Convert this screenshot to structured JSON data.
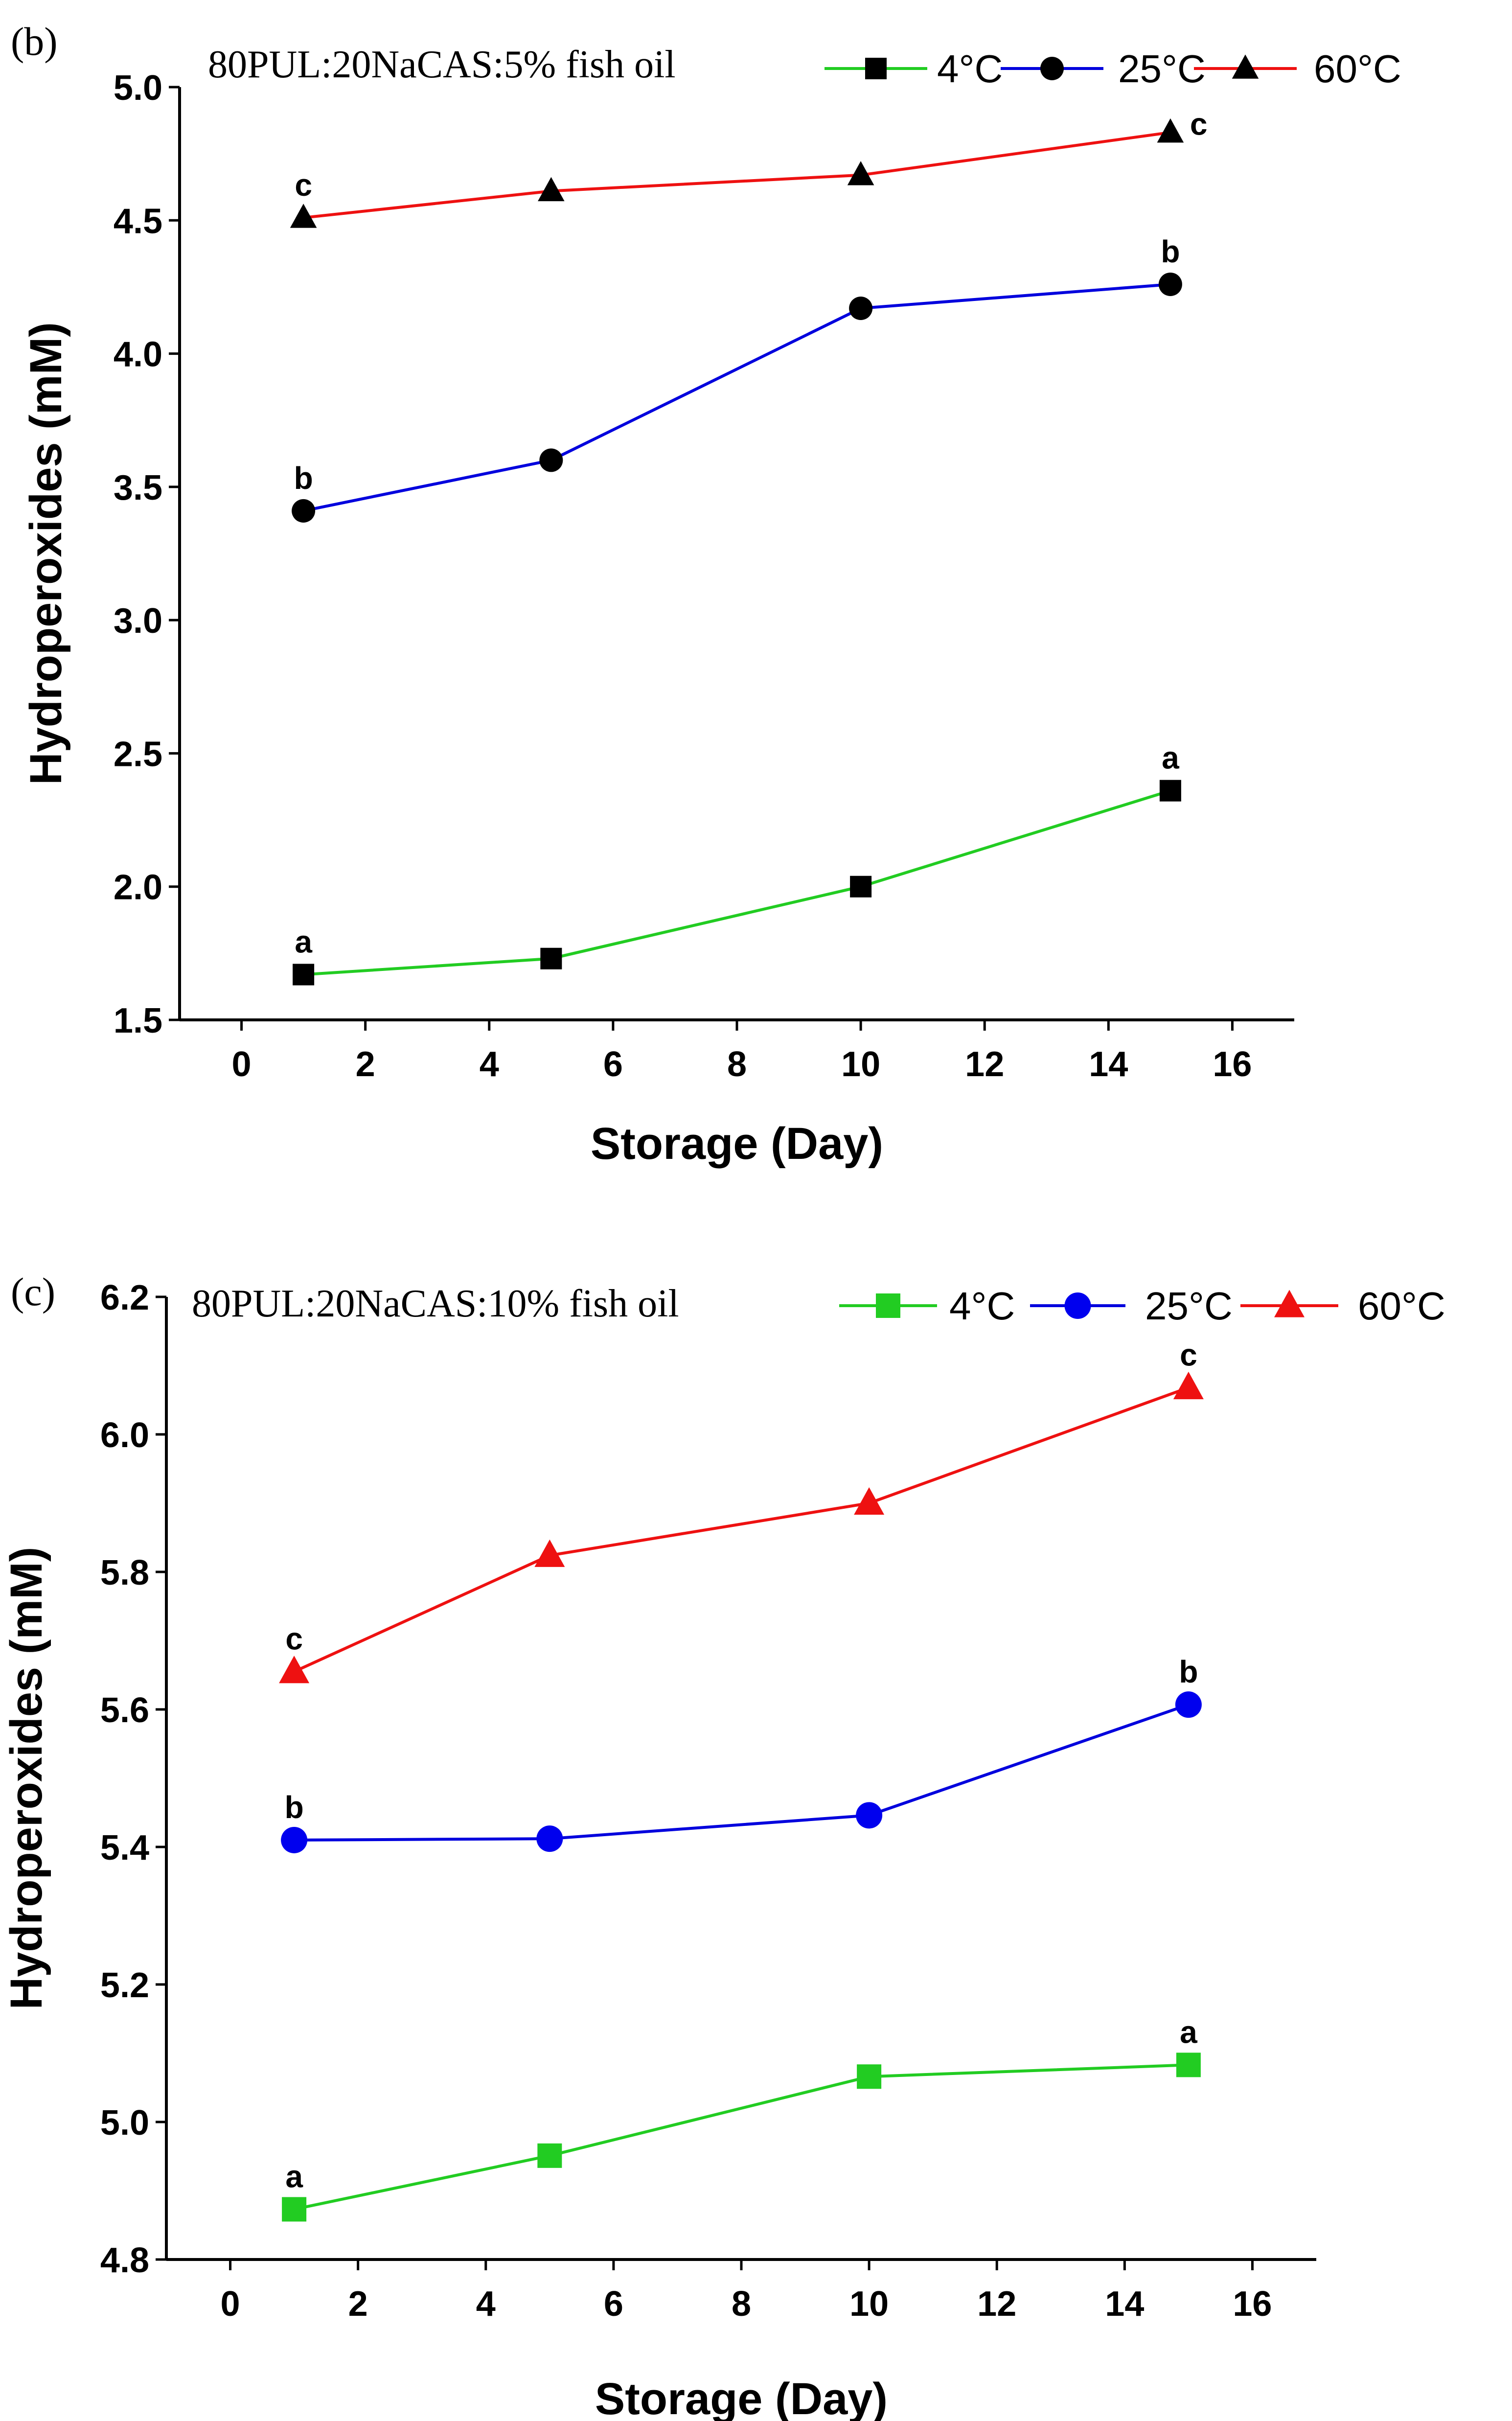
{
  "chart_data": [
    {
      "type": "line",
      "panel_label": "(b)",
      "title": "80PUL:20NaCAS:5% fish oil",
      "xlabel": "Storage (Day)",
      "ylabel": "Hydroperoxides (mM)",
      "xlim": [
        -1,
        17
      ],
      "ylim": [
        1.5,
        5.0
      ],
      "x_ticks": [
        0,
        2,
        4,
        6,
        8,
        10,
        12,
        14,
        16
      ],
      "y_ticks": [
        1.5,
        2.0,
        2.5,
        3.0,
        3.5,
        4.0,
        4.5,
        5.0
      ],
      "x_tick_labels": [
        "0",
        "2",
        "4",
        "6",
        "8",
        "10",
        "12",
        "14",
        "16"
      ],
      "y_tick_labels": [
        "1.5",
        "2.0",
        "2.5",
        "3.0",
        "3.5",
        "4.0",
        "4.5",
        "5.0"
      ],
      "legend_position": "top",
      "series": [
        {
          "name": "4°C",
          "line_color": "#22cc22",
          "marker": "square",
          "marker_color": "#000000",
          "x": [
            1,
            5,
            10,
            15
          ],
          "values": [
            1.67,
            1.73,
            2.0,
            2.36
          ],
          "annotations": [
            {
              "x": 1,
              "label": "a",
              "position": "above"
            },
            {
              "x": 15,
              "label": "a",
              "position": "above"
            }
          ]
        },
        {
          "name": "25°C",
          "line_color": "#0000dd",
          "marker": "circle",
          "marker_color": "#000000",
          "x": [
            1,
            5,
            10,
            15
          ],
          "values": [
            3.41,
            3.6,
            4.17,
            4.26
          ],
          "annotations": [
            {
              "x": 1,
              "label": "b",
              "position": "above"
            },
            {
              "x": 15,
              "label": "b",
              "position": "above"
            }
          ]
        },
        {
          "name": "60°C",
          "line_color": "#ee1111",
          "marker": "triangle",
          "marker_color": "#000000",
          "x": [
            1,
            5,
            10,
            15
          ],
          "values": [
            4.51,
            4.61,
            4.67,
            4.83
          ],
          "annotations": [
            {
              "x": 1,
              "label": "c",
              "position": "above"
            },
            {
              "x": 15,
              "label": "c",
              "position": "right"
            }
          ]
        }
      ]
    },
    {
      "type": "line",
      "panel_label": "(c)",
      "title": "80PUL:20NaCAS:10% fish oil",
      "xlabel": "Storage (Day)",
      "ylabel": "Hydroperoxides (mM)",
      "xlim": [
        -1,
        17
      ],
      "ylim": [
        4.8,
        6.2
      ],
      "x_ticks": [
        0,
        2,
        4,
        6,
        8,
        10,
        12,
        14,
        16
      ],
      "y_ticks": [
        4.8,
        5.0,
        5.2,
        5.4,
        5.6,
        5.8,
        6.0,
        6.2
      ],
      "x_tick_labels": [
        "0",
        "2",
        "4",
        "6",
        "8",
        "10",
        "12",
        "14",
        "16"
      ],
      "y_tick_labels": [
        "4.8",
        "5.0",
        "5.2",
        "5.4",
        "5.6",
        "5.8",
        "6.0",
        "6.2"
      ],
      "legend_position": "top",
      "series": [
        {
          "name": "4°C",
          "line_color": "#22cc22",
          "marker": "square",
          "marker_color": "#22cc22",
          "x": [
            1,
            5,
            10,
            15
          ],
          "values": [
            4.873,
            4.951,
            5.066,
            5.083
          ],
          "annotations": [
            {
              "x": 1,
              "label": "a",
              "position": "above"
            },
            {
              "x": 15,
              "label": "a",
              "position": "above"
            }
          ]
        },
        {
          "name": "25°C",
          "line_color": "#0000dd",
          "marker": "circle",
          "marker_color": "#0000ee",
          "x": [
            1,
            5,
            10,
            15
          ],
          "values": [
            5.41,
            5.412,
            5.446,
            5.607
          ],
          "annotations": [
            {
              "x": 1,
              "label": "b",
              "position": "above"
            },
            {
              "x": 15,
              "label": "b",
              "position": "above"
            }
          ]
        },
        {
          "name": "60°C",
          "line_color": "#ee1111",
          "marker": "triangle",
          "marker_color": "#ee1111",
          "x": [
            1,
            5,
            10,
            15
          ],
          "values": [
            5.655,
            5.824,
            5.9,
            6.068
          ],
          "annotations": [
            {
              "x": 1,
              "label": "c",
              "position": "above"
            },
            {
              "x": 15,
              "label": "c",
              "position": "above"
            }
          ]
        }
      ]
    }
  ]
}
